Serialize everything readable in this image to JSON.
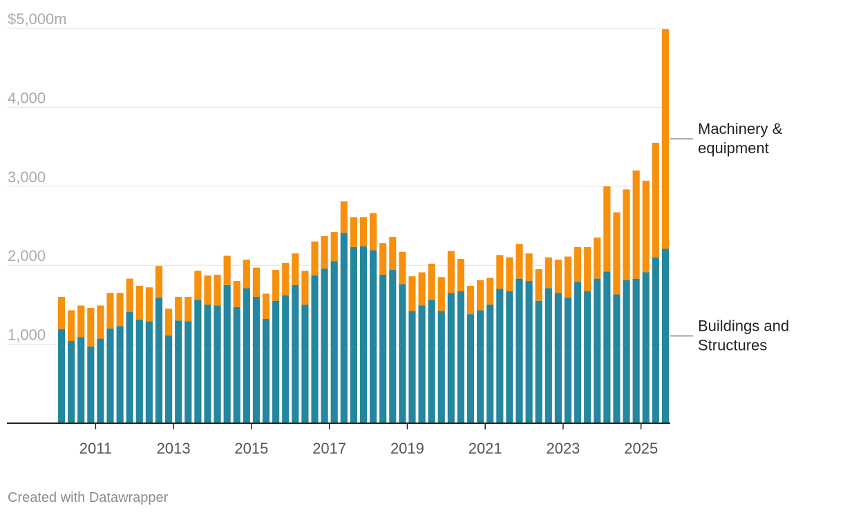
{
  "chart_data": {
    "type": "bar",
    "stacked": true,
    "credit": "Created with Datawrapper",
    "y_axis": {
      "ylim": [
        0,
        5000
      ],
      "ticks": [
        {
          "value": 1000,
          "label": "1,000"
        },
        {
          "value": 2000,
          "label": "2,000"
        },
        {
          "value": 3000,
          "label": "3,000"
        },
        {
          "value": 4000,
          "label": "4,000"
        },
        {
          "value": 5000,
          "label": "$5,000m"
        }
      ]
    },
    "x_axis": {
      "ticks": [
        {
          "index": 4,
          "label": "2011"
        },
        {
          "index": 12,
          "label": "2013"
        },
        {
          "index": 20,
          "label": "2015"
        },
        {
          "index": 28,
          "label": "2017"
        },
        {
          "index": 36,
          "label": "2019"
        },
        {
          "index": 44,
          "label": "2021"
        },
        {
          "index": 52,
          "label": "2023"
        },
        {
          "index": 60,
          "label": "2025"
        }
      ]
    },
    "series": [
      {
        "name": "Buildings and Structures",
        "label_lines": [
          "Buildings and",
          "Structures"
        ],
        "color": "#24869f",
        "values": [
          1190,
          1040,
          1090,
          970,
          1070,
          1200,
          1230,
          1410,
          1310,
          1290,
          1590,
          1110,
          1300,
          1290,
          1560,
          1500,
          1490,
          1750,
          1470,
          1710,
          1600,
          1320,
          1550,
          1620,
          1750,
          1500,
          1870,
          1960,
          2050,
          2410,
          2230,
          2240,
          2190,
          1880,
          1940,
          1760,
          1420,
          1490,
          1560,
          1420,
          1650,
          1670,
          1380,
          1430,
          1500,
          1700,
          1670,
          1830,
          1800,
          1550,
          1710,
          1650,
          1590,
          1790,
          1670,
          1830,
          1920,
          1630,
          1810,
          1830,
          1910,
          2100,
          2210
        ]
      },
      {
        "name": "Machinery & equipment",
        "label_lines": [
          "Machinery &",
          "equipment"
        ],
        "color": "#f7900d",
        "values": [
          410,
          390,
          400,
          490,
          420,
          450,
          420,
          420,
          430,
          430,
          400,
          340,
          300,
          310,
          370,
          370,
          390,
          370,
          330,
          360,
          370,
          320,
          390,
          410,
          400,
          430,
          430,
          410,
          370,
          400,
          380,
          370,
          470,
          400,
          420,
          410,
          440,
          420,
          460,
          430,
          530,
          410,
          360,
          380,
          340,
          430,
          430,
          440,
          350,
          400,
          390,
          420,
          520,
          440,
          560,
          520,
          1080,
          1040,
          1150,
          1370,
          1160,
          1450,
          2780
        ]
      }
    ]
  }
}
